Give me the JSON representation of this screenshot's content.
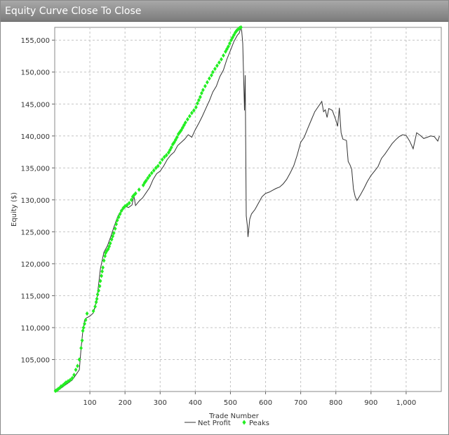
{
  "window": {
    "title": "Equity Curve Close To Close"
  },
  "chart_data": {
    "type": "line",
    "title": "Equity Curve Close To Close",
    "xlabel": "Trade Number",
    "ylabel": "Equity ($)",
    "xlim": [
      0,
      1100
    ],
    "ylim": [
      100000,
      157000
    ],
    "x_ticks": [
      100,
      200,
      300,
      400,
      500,
      600,
      700,
      800,
      900,
      1000
    ],
    "x_tick_labels": [
      "100",
      "200",
      "300",
      "400",
      "500",
      "600",
      "700",
      "800",
      "900",
      "1,000"
    ],
    "y_ticks": [
      105000,
      110000,
      115000,
      120000,
      125000,
      130000,
      135000,
      140000,
      145000,
      150000,
      155000
    ],
    "y_tick_labels": [
      "105,000",
      "110,000",
      "115,000",
      "120,000",
      "125,000",
      "130,000",
      "135,000",
      "140,000",
      "145,000",
      "150,000",
      "155,000"
    ],
    "grid": true,
    "legend_position": "bottom",
    "series": [
      {
        "name": "Net Profit",
        "color": "#333333",
        "x": [
          0,
          10,
          20,
          30,
          40,
          50,
          60,
          70,
          75,
          80,
          85,
          90,
          100,
          110,
          120,
          125,
          130,
          135,
          140,
          150,
          160,
          170,
          180,
          190,
          200,
          210,
          220,
          225,
          230,
          240,
          250,
          260,
          270,
          280,
          290,
          300,
          310,
          320,
          330,
          340,
          350,
          360,
          370,
          380,
          390,
          400,
          410,
          420,
          430,
          440,
          450,
          460,
          470,
          480,
          490,
          500,
          510,
          520,
          525,
          530,
          532,
          535,
          540,
          542,
          545,
          548,
          550,
          555,
          560,
          570,
          580,
          590,
          600,
          610,
          620,
          630,
          640,
          650,
          660,
          670,
          680,
          690,
          700,
          710,
          720,
          730,
          740,
          750,
          760,
          765,
          770,
          775,
          780,
          790,
          800,
          805,
          810,
          815,
          820,
          830,
          835,
          840,
          845,
          850,
          855,
          860,
          870,
          880,
          890,
          900,
          910,
          920,
          930,
          940,
          950,
          960,
          970,
          980,
          990,
          1000,
          1010,
          1020,
          1030,
          1040,
          1050,
          1060,
          1070,
          1080,
          1090,
          1095
        ],
        "values": [
          100000,
          100200,
          100600,
          101000,
          101400,
          101800,
          102600,
          103400,
          106800,
          109500,
          111200,
          111500,
          111800,
          112300,
          114500,
          116800,
          119200,
          120500,
          121800,
          122800,
          124300,
          126000,
          127500,
          128300,
          129000,
          128800,
          129200,
          130700,
          129100,
          129800,
          130300,
          131100,
          131900,
          133200,
          134100,
          134500,
          135300,
          136300,
          137000,
          137500,
          138500,
          139000,
          139500,
          140200,
          139800,
          141000,
          142000,
          143100,
          144300,
          145500,
          146900,
          147800,
          149300,
          150300,
          152000,
          153400,
          154800,
          155800,
          156100,
          157000,
          156500,
          154500,
          144000,
          149500,
          127500,
          126000,
          124200,
          127000,
          127800,
          128500,
          129500,
          130500,
          131000,
          131200,
          131500,
          131800,
          132000,
          132500,
          133200,
          134200,
          135300,
          137000,
          139000,
          139800,
          141200,
          142500,
          143800,
          144600,
          145400,
          143800,
          144100,
          142900,
          144300,
          144000,
          142500,
          141500,
          144400,
          140500,
          139500,
          139300,
          136000,
          135500,
          134800,
          131700,
          130500,
          129900,
          130800,
          131800,
          132900,
          133800,
          134500,
          135200,
          136500,
          137200,
          138000,
          138800,
          139400,
          139900,
          140200,
          140100,
          139200,
          138000,
          140500,
          140100,
          139600,
          139800,
          140000,
          139900,
          139200,
          140000
        ]
      },
      {
        "name": "Peaks",
        "color": "#22ee22",
        "x": [
          2,
          6,
          10,
          15,
          18,
          24,
          28,
          32,
          38,
          44,
          50,
          55,
          60,
          65,
          70,
          75,
          78,
          80,
          82,
          85,
          88,
          92,
          110,
          115,
          118,
          120,
          122,
          125,
          128,
          130,
          133,
          135,
          137,
          140,
          143,
          145,
          148,
          152,
          155,
          158,
          162,
          165,
          168,
          172,
          175,
          178,
          182,
          186,
          190,
          195,
          200,
          206,
          212,
          218,
          222,
          225,
          230,
          240,
          252,
          256,
          260,
          265,
          270,
          276,
          282,
          288,
          294,
          300,
          306,
          312,
          318,
          324,
          328,
          332,
          336,
          340,
          344,
          348,
          352,
          356,
          360,
          364,
          368,
          372,
          378,
          384,
          390,
          396,
          402,
          406,
          410,
          414,
          418,
          422,
          428,
          434,
          440,
          446,
          450,
          456,
          462,
          468,
          474,
          480,
          486,
          490,
          494,
          498,
          502,
          506,
          510,
          514,
          518,
          522,
          526,
          530
        ],
        "values": [
          100100,
          100200,
          100400,
          100600,
          100800,
          101000,
          101200,
          101400,
          101600,
          101800,
          102100,
          102600,
          103400,
          104000,
          105000,
          106800,
          108000,
          109500,
          110000,
          110600,
          111200,
          112200,
          112600,
          113300,
          114000,
          114500,
          115200,
          115800,
          116500,
          117300,
          118100,
          118800,
          119400,
          120500,
          121200,
          121700,
          122000,
          122300,
          122700,
          123200,
          123800,
          124300,
          124800,
          125500,
          126200,
          126800,
          127300,
          127800,
          128300,
          128700,
          129000,
          129200,
          129500,
          130000,
          130500,
          130700,
          131000,
          131600,
          132300,
          132700,
          133000,
          133400,
          133800,
          134200,
          134600,
          135000,
          135300,
          135800,
          136300,
          136700,
          137000,
          137400,
          137800,
          138200,
          138700,
          139000,
          139400,
          139800,
          140300,
          140600,
          140900,
          141300,
          141700,
          142100,
          142600,
          143100,
          143600,
          144000,
          144500,
          145100,
          145600,
          146100,
          146700,
          147200,
          147800,
          148400,
          149000,
          149500,
          150000,
          150500,
          151000,
          151500,
          152000,
          152600,
          153200,
          153600,
          154000,
          154500,
          155000,
          155400,
          155800,
          156200,
          156500,
          156700,
          156900,
          157000
        ]
      }
    ]
  }
}
